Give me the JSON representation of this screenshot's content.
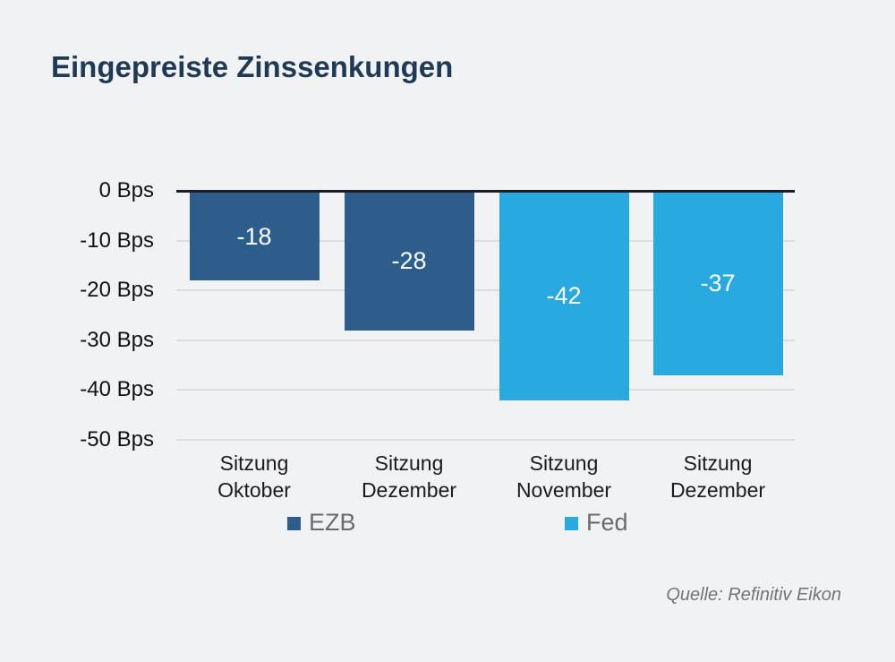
{
  "title": "Eingepreiste Zinssenkungen",
  "source": "Quelle: Refinitiv Eikon",
  "colors": {
    "background": "#f1f2f4",
    "title_text": "#1e3a54",
    "ezb": "#2c5d8b",
    "fed": "#28aae1",
    "zero_line": "#1a1c26",
    "gridline": "#dbdddf",
    "axis_text": "#121212",
    "legend_text": "#6a6b6e",
    "source_text": "#737478",
    "bar_label_text": "#ffffff"
  },
  "chart_data": {
    "type": "bar",
    "title": "Eingepreiste Zinssenkungen",
    "unit": "Bps",
    "categories": [
      "Sitzung Oktober",
      "Sitzung Dezember",
      "Sitzung November",
      "Sitzung Dezember"
    ],
    "bars": [
      {
        "category": "Sitzung Oktober",
        "series": "EZB",
        "value": -18,
        "label": "-18"
      },
      {
        "category": "Sitzung Dezember",
        "series": "EZB",
        "value": -28,
        "label": "-28"
      },
      {
        "category": "Sitzung November",
        "series": "Fed",
        "value": -42,
        "label": "-42"
      },
      {
        "category": "Sitzung Dezember",
        "series": "Fed",
        "value": -37,
        "label": "-37"
      }
    ],
    "series": [
      {
        "name": "EZB",
        "color": "#2c5d8b",
        "values": [
          -18,
          -28,
          null,
          null
        ]
      },
      {
        "name": "Fed",
        "color": "#28aae1",
        "values": [
          null,
          null,
          -42,
          -37
        ]
      }
    ],
    "ylim": [
      -50,
      0
    ],
    "y_ticks": [
      {
        "value": 0,
        "label": "0 Bps"
      },
      {
        "value": -10,
        "label": "-10 Bps"
      },
      {
        "value": -20,
        "label": "-20 Bps"
      },
      {
        "value": -30,
        "label": "-30 Bps"
      },
      {
        "value": -40,
        "label": "-40 Bps"
      },
      {
        "value": -50,
        "label": "-50 Bps"
      }
    ],
    "grid": "horizontal",
    "legend": [
      {
        "label": "EZB",
        "color": "#2c5d8b"
      },
      {
        "label": "Fed",
        "color": "#28aae1"
      }
    ],
    "legend_position": "bottom"
  }
}
